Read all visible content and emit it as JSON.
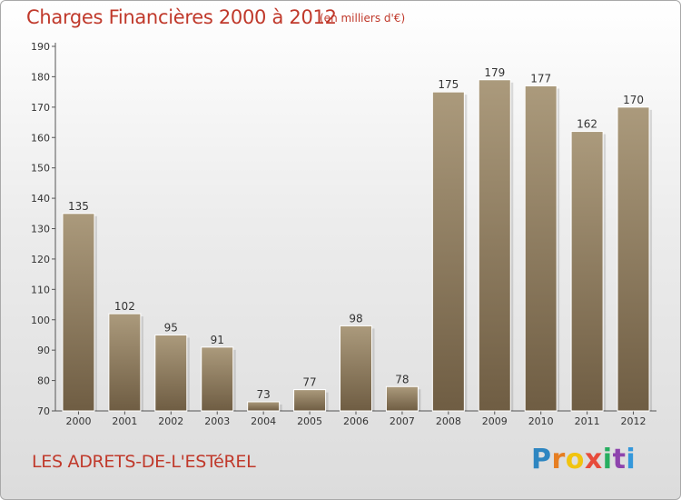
{
  "header": {
    "title": "Charges Financières 2000 à 2012",
    "subtitle": "(en milliers d'€)"
  },
  "footer": {
    "place": "LES ADRETS-DE-L'ESTéREL",
    "logo_letters": [
      "P",
      "r",
      "o",
      "x",
      "i",
      "t",
      "i"
    ]
  },
  "colors": {
    "bar_top": "#ab9a7c",
    "bar_bottom": "#6f5d43",
    "title": "#c0392b"
  },
  "chart_data": {
    "type": "bar",
    "title": "Charges Financières 2000 à 2012",
    "subtitle": "(en milliers d'€)",
    "xlabel": "",
    "ylabel": "",
    "categories": [
      "2000",
      "2001",
      "2002",
      "2003",
      "2004",
      "2005",
      "2006",
      "2007",
      "2008",
      "2009",
      "2010",
      "2011",
      "2012"
    ],
    "values": [
      135,
      102,
      95,
      91,
      73,
      77,
      98,
      78,
      175,
      179,
      177,
      162,
      170
    ],
    "ylim": [
      70,
      190
    ],
    "yticks": [
      70,
      80,
      90,
      100,
      110,
      120,
      130,
      140,
      150,
      160,
      170,
      180,
      190
    ],
    "grid": false,
    "legend": "none"
  }
}
